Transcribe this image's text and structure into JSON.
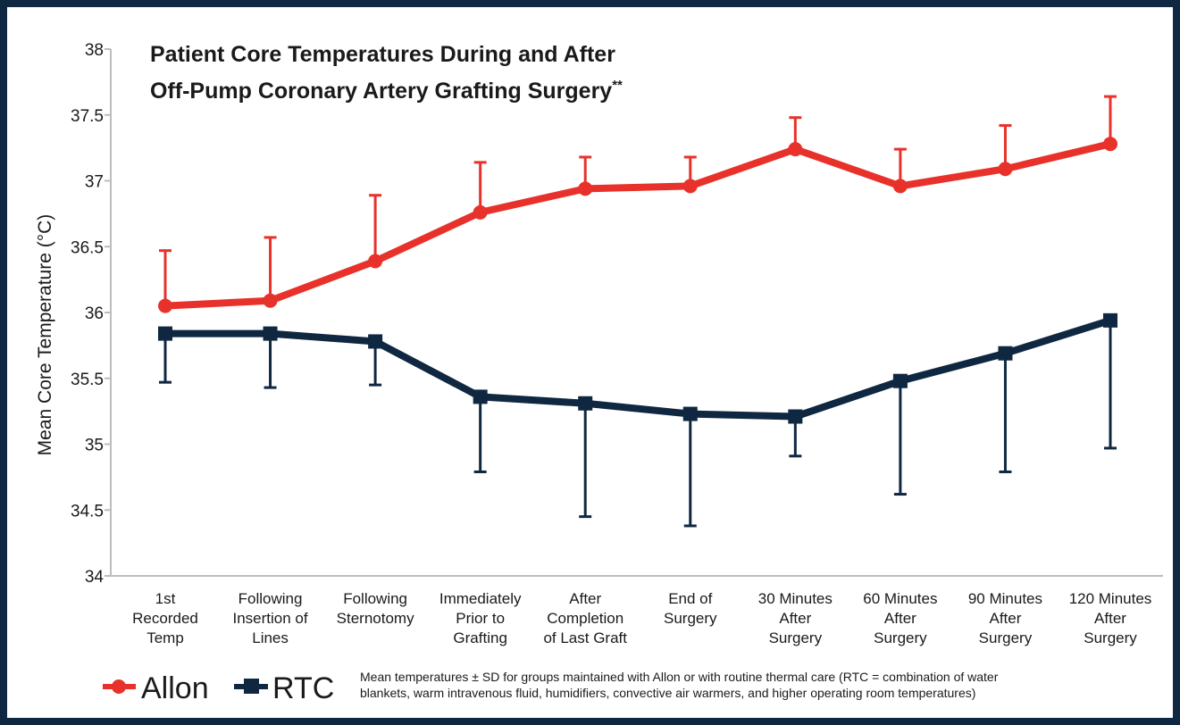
{
  "chart_data": {
    "type": "line",
    "title_lines": [
      "Patient Core Temperatures During and After",
      "Off-Pump Coronary Artery Grafting Surgery"
    ],
    "title_suffix": "**",
    "ylabel": "Mean Core Temperature (°C)",
    "xlabel": "",
    "ylim": [
      34,
      38
    ],
    "yticks": [
      34,
      34.5,
      35,
      35.5,
      36,
      36.5,
      37,
      37.5,
      38
    ],
    "ytick_labels": [
      "34",
      "34.5",
      "35",
      "35.5",
      "36",
      "36.5",
      "37",
      "37.5",
      "38"
    ],
    "categories": [
      [
        "1st",
        "Recorded",
        "Temp"
      ],
      [
        "Following",
        "Insertion of",
        "Lines"
      ],
      [
        "Following",
        "Sternotomy"
      ],
      [
        "Immediately",
        "Prior to",
        "Grafting"
      ],
      [
        "After",
        "Completion",
        "of Last Graft"
      ],
      [
        "End of",
        "Surgery"
      ],
      [
        "30 Minutes",
        "After",
        "Surgery"
      ],
      [
        "60 Minutes",
        "After",
        "Surgery"
      ],
      [
        "90 Minutes",
        "After",
        "Surgery"
      ],
      [
        "120 Minutes",
        "After",
        "Surgery"
      ]
    ],
    "series": [
      {
        "name": "Allon",
        "color": "#e8312a",
        "marker": "circle",
        "values": [
          36.05,
          36.09,
          36.39,
          36.76,
          36.94,
          36.96,
          37.24,
          36.96,
          37.09,
          37.28
        ],
        "error_upper": [
          36.47,
          36.57,
          36.89,
          37.14,
          37.18,
          37.18,
          37.48,
          37.24,
          37.42,
          37.64
        ]
      },
      {
        "name": "RTC",
        "color": "#0f2740",
        "marker": "square",
        "values": [
          35.84,
          35.84,
          35.78,
          35.36,
          35.31,
          35.23,
          35.21,
          35.48,
          35.69,
          35.94
        ],
        "error_lower": [
          35.47,
          35.43,
          35.45,
          34.79,
          34.45,
          34.38,
          34.91,
          34.62,
          34.79,
          34.97
        ]
      }
    ],
    "grid": false,
    "legend_position": "bottom-left"
  },
  "legend_note": [
    "Mean temperatures ± SD for groups maintained with Allon or with routine thermal care (RTC = combination of water",
    "blankets, warm intravenous fluid, humidifiers, convective air warmers, and higher operating room temperatures)"
  ]
}
